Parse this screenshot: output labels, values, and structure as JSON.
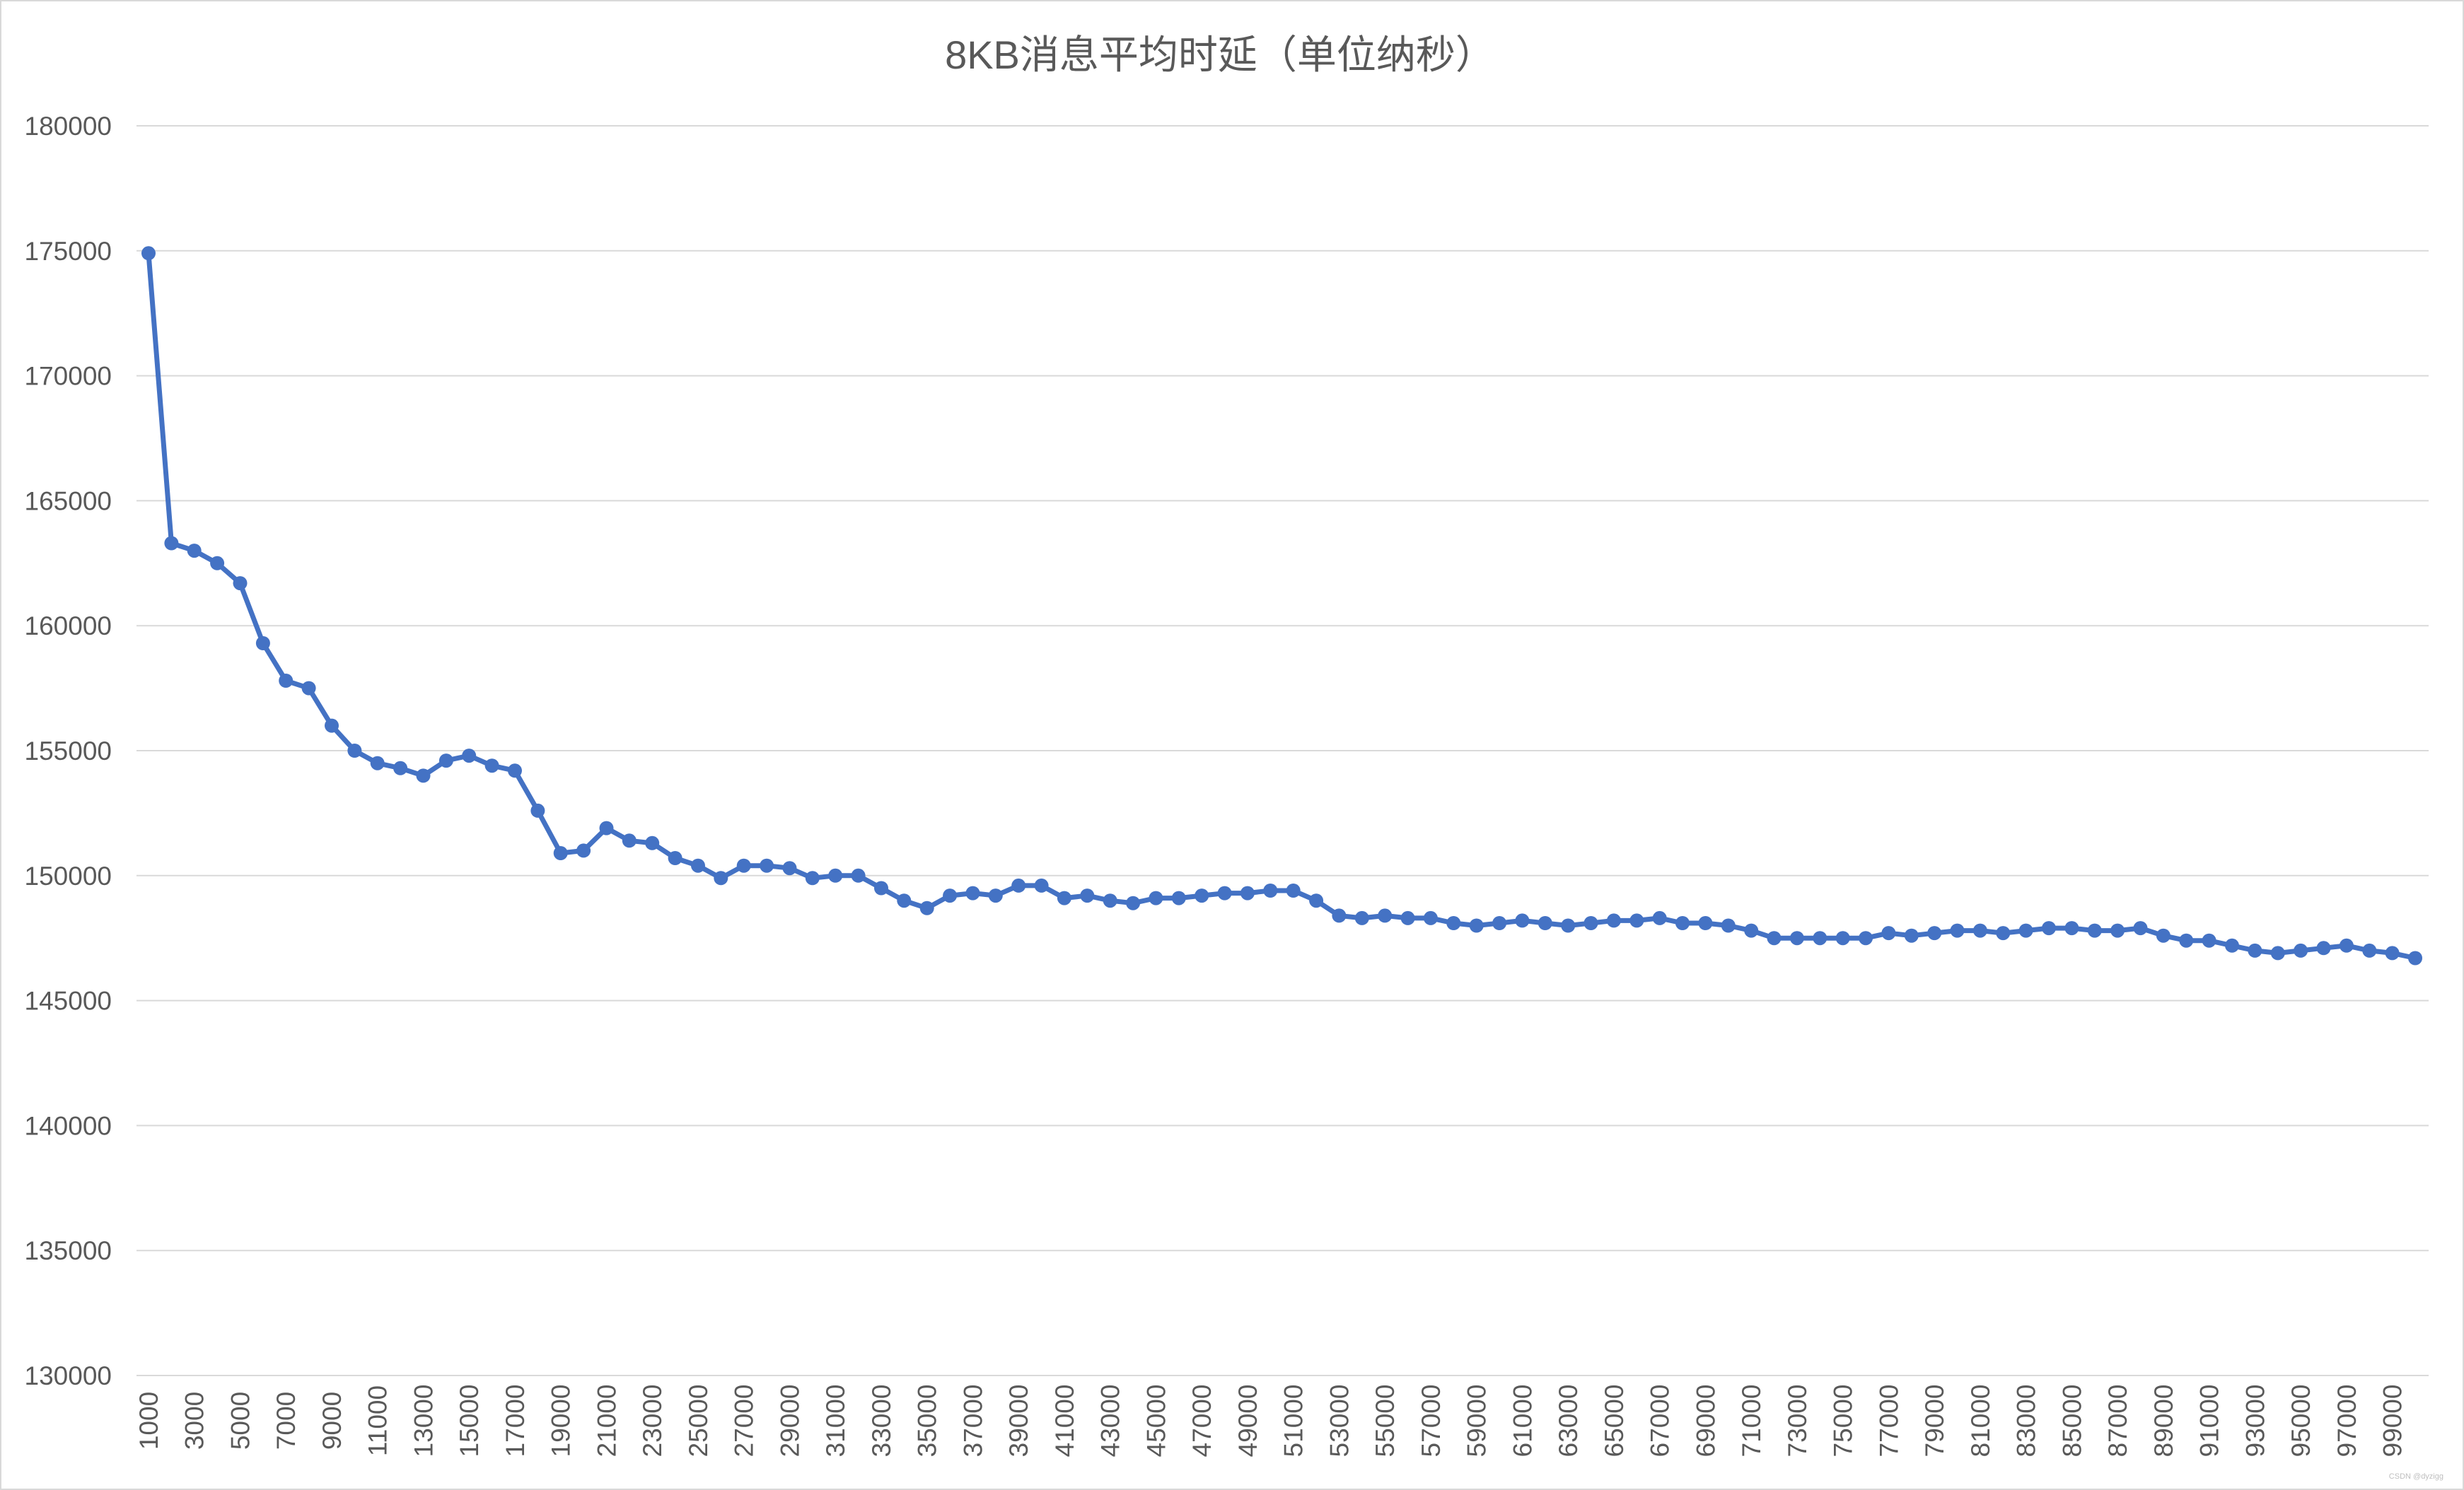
{
  "chart_data": {
    "type": "line",
    "title": "8KB消息平均时延（单位纳秒）",
    "xlabel": "",
    "ylabel": "",
    "ylim": [
      130000,
      180000
    ],
    "ytick_step": 5000,
    "grid": true,
    "legend": "none",
    "x_tick_labels": [
      "1000",
      "3000",
      "5000",
      "7000",
      "9000",
      "11000",
      "13000",
      "15000",
      "17000",
      "19000",
      "21000",
      "23000",
      "25000",
      "27000",
      "29000",
      "31000",
      "33000",
      "35000",
      "37000",
      "39000",
      "41000",
      "43000",
      "45000",
      "47000",
      "49000",
      "51000",
      "53000",
      "55000",
      "57000",
      "59000",
      "61000",
      "63000",
      "65000",
      "67000",
      "69000",
      "71000",
      "73000",
      "75000",
      "77000",
      "79000",
      "81000",
      "83000",
      "85000",
      "87000",
      "89000",
      "91000",
      "93000",
      "95000",
      "97000",
      "99000"
    ],
    "x_start": 1000,
    "x_step": 1000,
    "series": [
      {
        "color": "#4472c4",
        "values": [
          174900,
          163300,
          163000,
          162500,
          161700,
          159300,
          157800,
          157500,
          156000,
          155000,
          154500,
          154300,
          154000,
          154600,
          154800,
          154400,
          154200,
          152600,
          150900,
          151000,
          151900,
          151400,
          151300,
          150700,
          150400,
          149900,
          150400,
          150400,
          150300,
          149900,
          150000,
          150000,
          149500,
          149000,
          148700,
          149200,
          149300,
          149200,
          149600,
          149600,
          149100,
          149200,
          149000,
          148900,
          149100,
          149100,
          149200,
          149300,
          149300,
          149400,
          149400,
          149000,
          148400,
          148300,
          148400,
          148300,
          148300,
          148100,
          148000,
          148100,
          148200,
          148100,
          148000,
          148100,
          148200,
          148200,
          148300,
          148100,
          148100,
          148000,
          147800,
          147500,
          147500,
          147500,
          147500,
          147500,
          147700,
          147600,
          147700,
          147800,
          147800,
          147700,
          147800,
          147900,
          147900,
          147800,
          147800,
          147900,
          147600,
          147400,
          147400,
          147200,
          147000,
          146900,
          147000,
          147100,
          147200,
          147000,
          146900,
          146700
        ]
      }
    ]
  },
  "watermark": "CSDN @dyzigg"
}
